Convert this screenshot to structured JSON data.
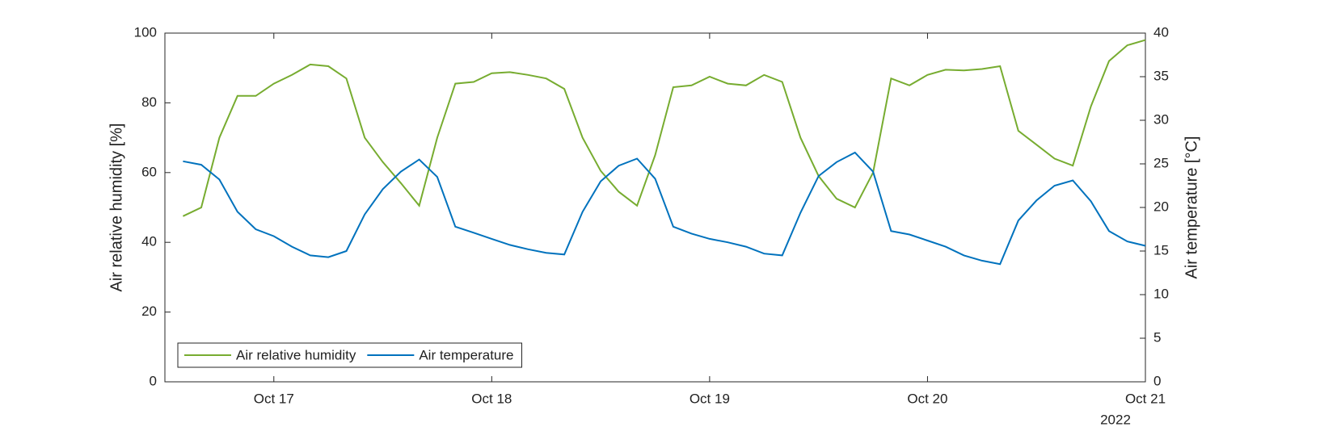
{
  "chart_data": {
    "type": "line",
    "xlabel_secondary": "2022",
    "ylabel": "Air relative humidity [%]",
    "y2label": "Air temperature [°C]",
    "x": [
      16.583,
      16.667,
      16.75,
      16.833,
      16.917,
      17.0,
      17.083,
      17.167,
      17.25,
      17.333,
      17.417,
      17.5,
      17.583,
      17.667,
      17.75,
      17.833,
      17.917,
      18.0,
      18.083,
      18.167,
      18.25,
      18.333,
      18.417,
      18.5,
      18.583,
      18.667,
      18.75,
      18.833,
      18.917,
      19.0,
      19.083,
      19.167,
      19.25,
      19.333,
      19.417,
      19.5,
      19.583,
      19.667,
      19.75,
      19.833,
      19.917,
      20.0,
      20.083,
      20.167,
      20.25,
      20.333,
      20.417,
      20.5,
      20.583,
      20.667,
      20.75,
      20.833,
      20.917,
      21.0
    ],
    "series": [
      {
        "name": "Air relative humidity",
        "color": "#77ac30",
        "axis": "y",
        "values": [
          47.5,
          50,
          70,
          82,
          82,
          85.5,
          88,
          91,
          90.5,
          87,
          70,
          63,
          57,
          50.5,
          70,
          85.5,
          86,
          88.5,
          88.8,
          88,
          87,
          84,
          70,
          60.5,
          54.5,
          50.5,
          65,
          84.5,
          85,
          87.5,
          85.5,
          85,
          88,
          86,
          70,
          59,
          52.5,
          50,
          60,
          87,
          85,
          88,
          89.5,
          89.3,
          89.7,
          90.5,
          72,
          68,
          64,
          62,
          79,
          92,
          96.5,
          98
        ]
      },
      {
        "name": "Air temperature",
        "color": "#0072bd",
        "axis": "y2",
        "values": [
          25.3,
          24.9,
          23.2,
          19.5,
          17.5,
          16.7,
          15.5,
          14.5,
          14.3,
          15.0,
          19.2,
          22.1,
          24.1,
          25.5,
          23.5,
          17.8,
          17.1,
          16.4,
          15.7,
          15.2,
          14.8,
          14.6,
          19.5,
          23,
          24.8,
          25.6,
          23.3,
          17.8,
          17,
          16.4,
          16,
          15.5,
          14.7,
          14.5,
          19.4,
          23.6,
          25.2,
          26.3,
          24.1,
          17.3,
          16.9,
          16.2,
          15.5,
          14.5,
          13.9,
          13.5,
          18.5,
          20.8,
          22.5,
          23.1,
          20.7,
          17.3,
          16.1,
          15.6
        ]
      }
    ],
    "xlim": [
      16.5,
      21
    ],
    "xticks": [
      {
        "value": 17,
        "label": "Oct 17"
      },
      {
        "value": 18,
        "label": "Oct 18"
      },
      {
        "value": 19,
        "label": "Oct 19"
      },
      {
        "value": 20,
        "label": "Oct 20"
      },
      {
        "value": 21,
        "label": "Oct 21"
      }
    ],
    "ylim": [
      0,
      100
    ],
    "yticks": [
      0,
      20,
      40,
      60,
      80,
      100
    ],
    "y2lim": [
      0,
      40
    ],
    "y2ticks": [
      0,
      5,
      10,
      15,
      20,
      25,
      30,
      35,
      40
    ],
    "grid": false,
    "legend": "southwest"
  }
}
